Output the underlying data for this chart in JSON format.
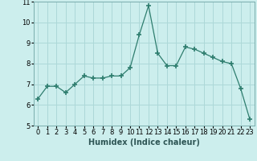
{
  "x": [
    0,
    1,
    2,
    3,
    4,
    5,
    6,
    7,
    8,
    9,
    10,
    11,
    12,
    13,
    14,
    15,
    16,
    17,
    18,
    19,
    20,
    21,
    22,
    23
  ],
  "y": [
    6.3,
    6.9,
    6.9,
    6.6,
    7.0,
    7.4,
    7.3,
    7.3,
    7.4,
    7.4,
    7.8,
    9.4,
    10.8,
    8.5,
    7.9,
    7.9,
    8.8,
    8.7,
    8.5,
    8.3,
    8.1,
    8.0,
    6.8,
    5.3
  ],
  "line_color": "#2e7d6e",
  "marker": "+",
  "marker_size": 4,
  "marker_lw": 1.2,
  "bg_color": "#cceeed",
  "grid_color": "#add8d8",
  "xlabel": "Humidex (Indice chaleur)",
  "ylim": [
    5,
    11
  ],
  "xlim": [
    -0.5,
    23.5
  ],
  "yticks": [
    5,
    6,
    7,
    8,
    9,
    10,
    11
  ],
  "xticks": [
    0,
    1,
    2,
    3,
    4,
    5,
    6,
    7,
    8,
    9,
    10,
    11,
    12,
    13,
    14,
    15,
    16,
    17,
    18,
    19,
    20,
    21,
    22,
    23
  ],
  "label_fontsize": 7,
  "tick_fontsize": 6
}
